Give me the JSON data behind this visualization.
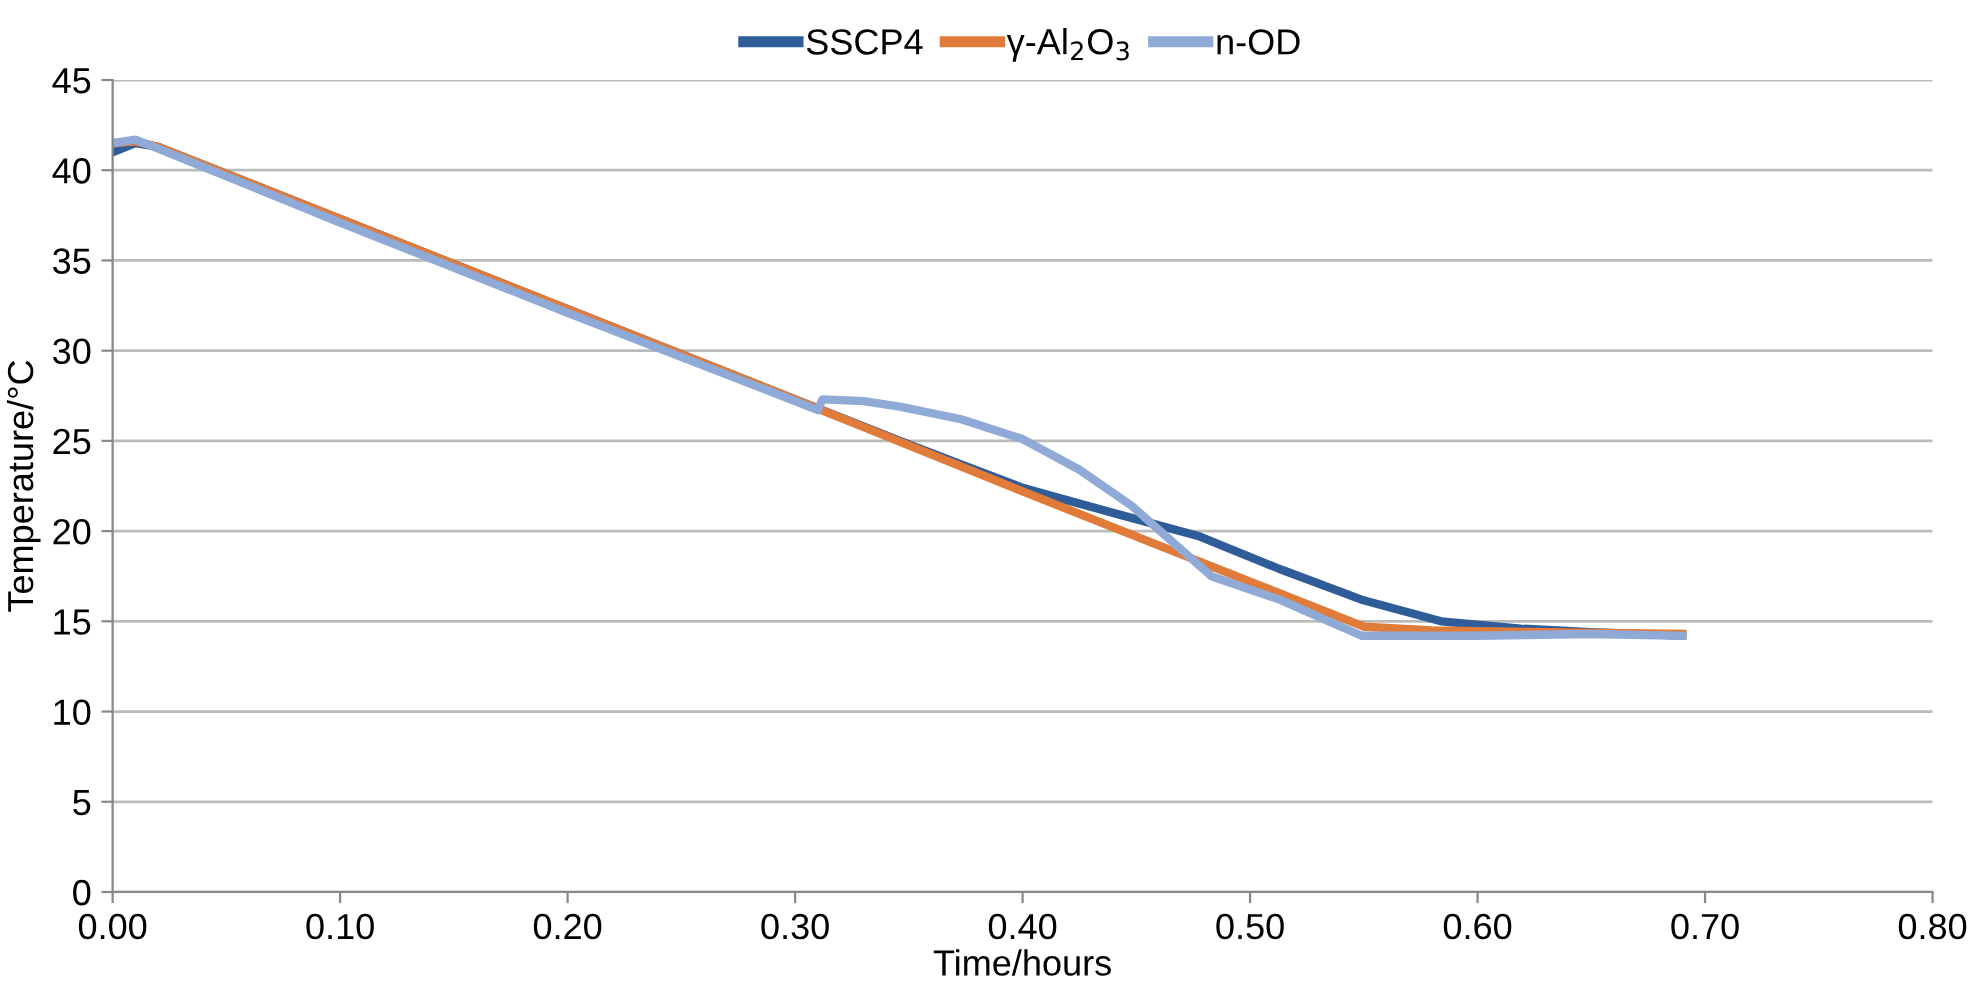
{
  "chart_data": {
    "type": "line",
    "xlabel": "Time/hours",
    "ylabel": "Temperature/°C",
    "xlim": [
      0,
      0.8
    ],
    "ylim": [
      0,
      45
    ],
    "xticks": [
      {
        "value": 0,
        "label": "0.00"
      },
      {
        "value": 0.1,
        "label": "0.10"
      },
      {
        "value": 0.2,
        "label": "0.20"
      },
      {
        "value": 0.3,
        "label": "0.30"
      },
      {
        "value": 0.4,
        "label": "0.40"
      },
      {
        "value": 0.5,
        "label": "0.50"
      },
      {
        "value": 0.6,
        "label": "0.60"
      },
      {
        "value": 0.7,
        "label": "0.70"
      },
      {
        "value": 0.8,
        "label": "0.80"
      }
    ],
    "yticks": [
      0,
      5,
      10,
      15,
      20,
      25,
      30,
      35,
      40,
      45
    ],
    "grid": "y",
    "legend": "top",
    "marker": "none",
    "line_style": "solid",
    "series": [
      {
        "name": "SSCP4",
        "color": "#2e5d99",
        "x": [
          0,
          0.01,
          0.02,
          0.1,
          0.2,
          0.3,
          0.35,
          0.373,
          0.4,
          0.417,
          0.443,
          0.478,
          0.513,
          0.549,
          0.584,
          0.619,
          0.65,
          0.69
        ],
        "values": [
          41.0,
          41.5,
          41.3,
          37.3,
          32.3,
          27.3,
          24.8,
          23.7,
          22.4,
          21.8,
          20.9,
          19.7,
          17.9,
          16.2,
          15.0,
          14.6,
          14.4,
          14.2
        ]
      },
      {
        "name": "γ-Al$_{2}$O$_{3}$",
        "color": "#e07b39",
        "x": [
          0,
          0.01,
          0.02,
          0.1,
          0.2,
          0.3,
          0.4,
          0.5,
          0.55,
          0.58,
          0.63,
          0.69
        ],
        "values": [
          41.5,
          41.6,
          41.3,
          37.3,
          32.3,
          27.3,
          22.2,
          17.2,
          14.7,
          14.5,
          14.4,
          14.3
        ]
      },
      {
        "name": "n-OD",
        "color": "#8faad6",
        "x": [
          0,
          0.01,
          0.02,
          0.1,
          0.2,
          0.3,
          0.31,
          0.312,
          0.33,
          0.346,
          0.373,
          0.4,
          0.425,
          0.448,
          0.465,
          0.483,
          0.513,
          0.549,
          0.6,
          0.65,
          0.69
        ],
        "values": [
          41.5,
          41.7,
          41.2,
          37.1,
          32.1,
          27.2,
          26.7,
          27.3,
          27.2,
          26.9,
          26.2,
          25.1,
          23.4,
          21.4,
          19.5,
          17.5,
          16.2,
          14.2,
          14.2,
          14.3,
          14.2
        ]
      }
    ]
  }
}
